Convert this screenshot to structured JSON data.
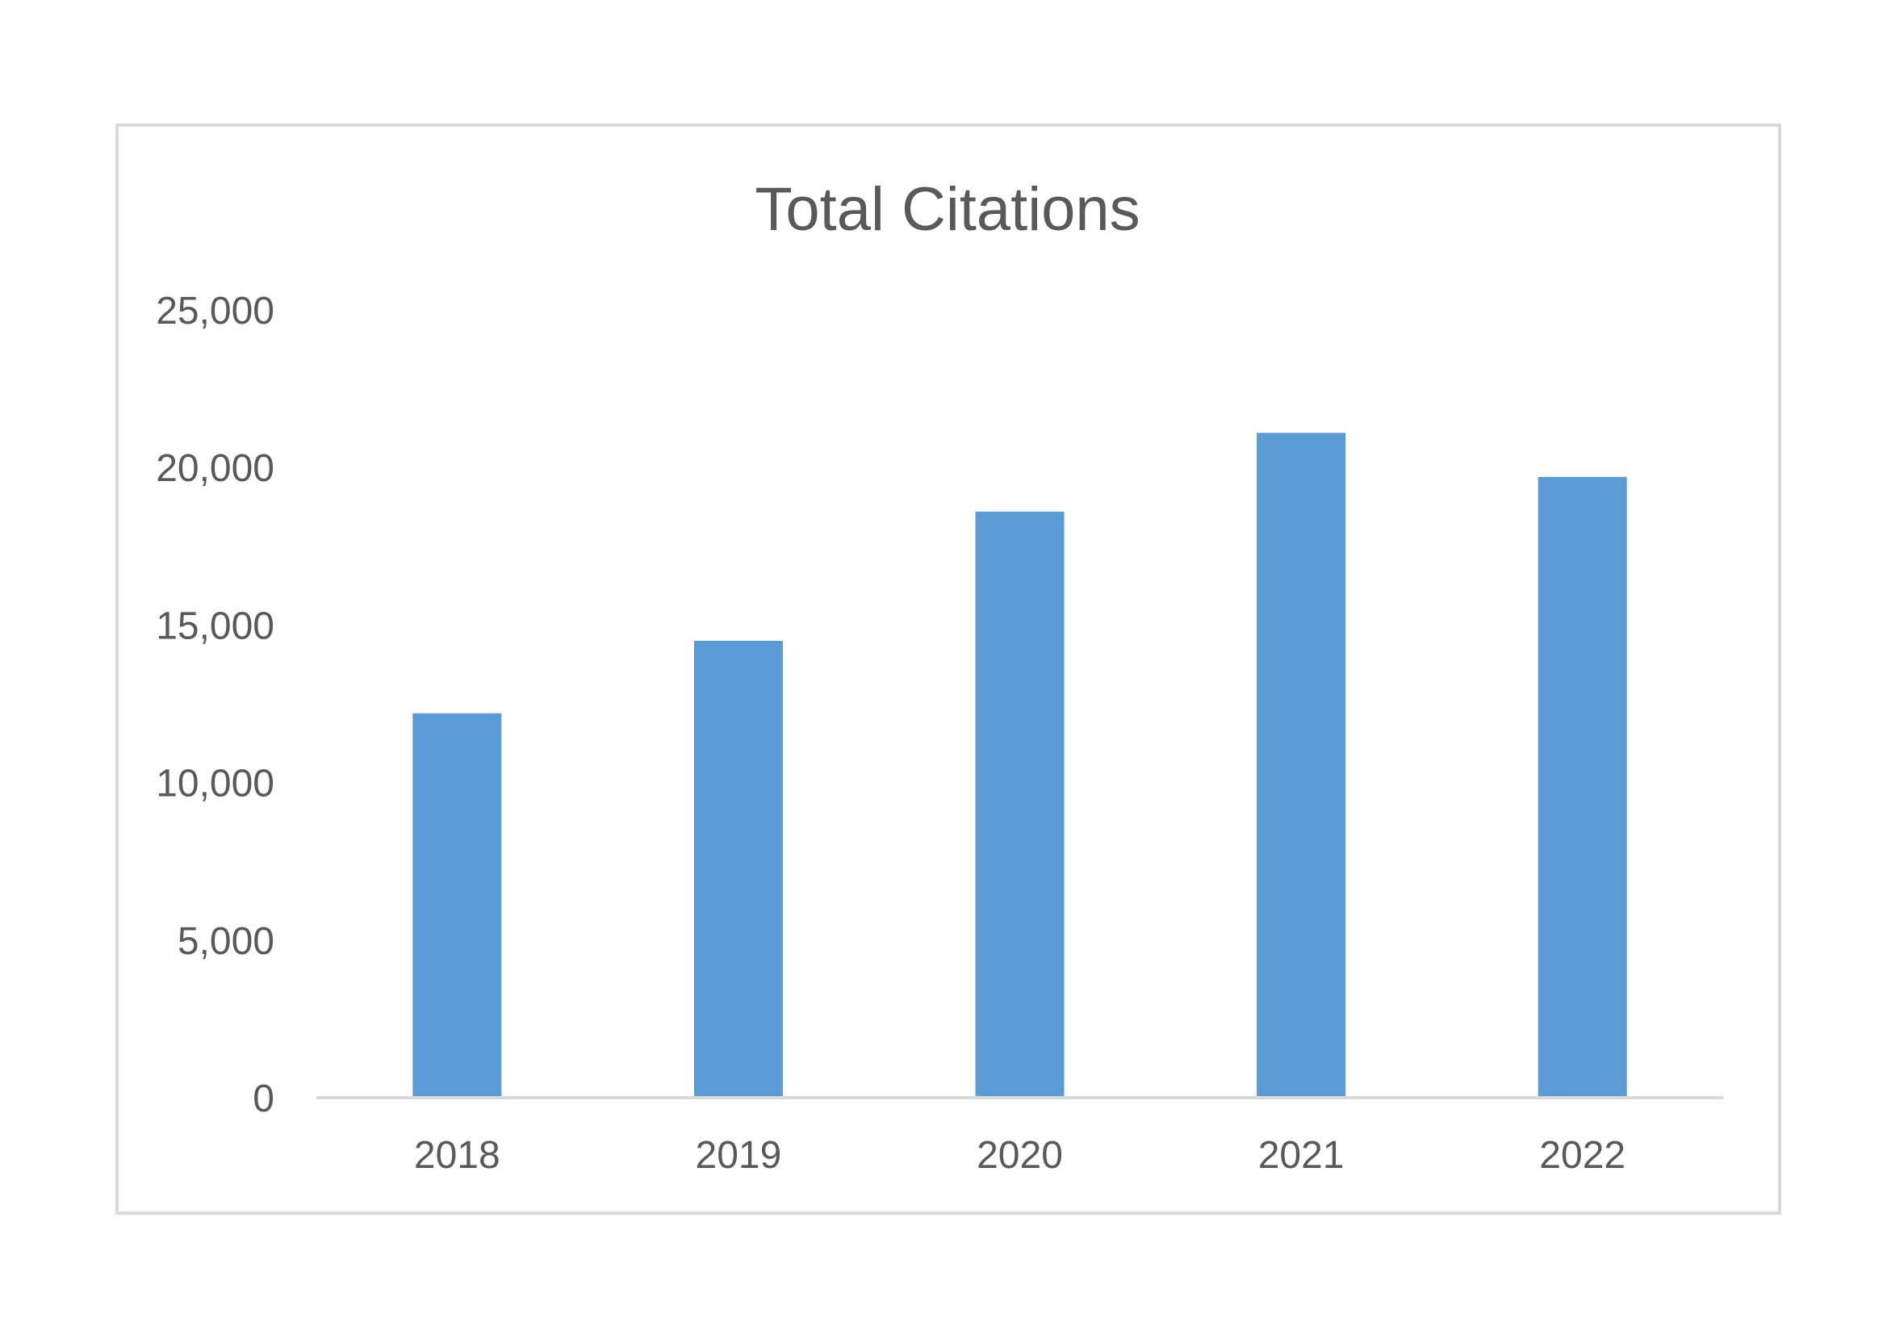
{
  "chart_data": {
    "type": "bar",
    "title": "Total Citations",
    "xlabel": "",
    "ylabel": "",
    "categories": [
      "2018",
      "2019",
      "2020",
      "2021",
      "2022"
    ],
    "values": [
      12200,
      14500,
      18600,
      21100,
      19700
    ],
    "ylim": [
      0,
      25000
    ],
    "yticks": [
      0,
      5000,
      10000,
      15000,
      20000,
      25000
    ],
    "ytick_labels": [
      "0",
      "5,000",
      "10,000",
      "15,000",
      "20,000",
      "25,000"
    ],
    "grid": false,
    "legend": "none",
    "colors": {
      "bar": "#5b9bd5",
      "axis": "#d9d9d9",
      "text": "#595959",
      "frame": "#d9d9d9"
    }
  }
}
